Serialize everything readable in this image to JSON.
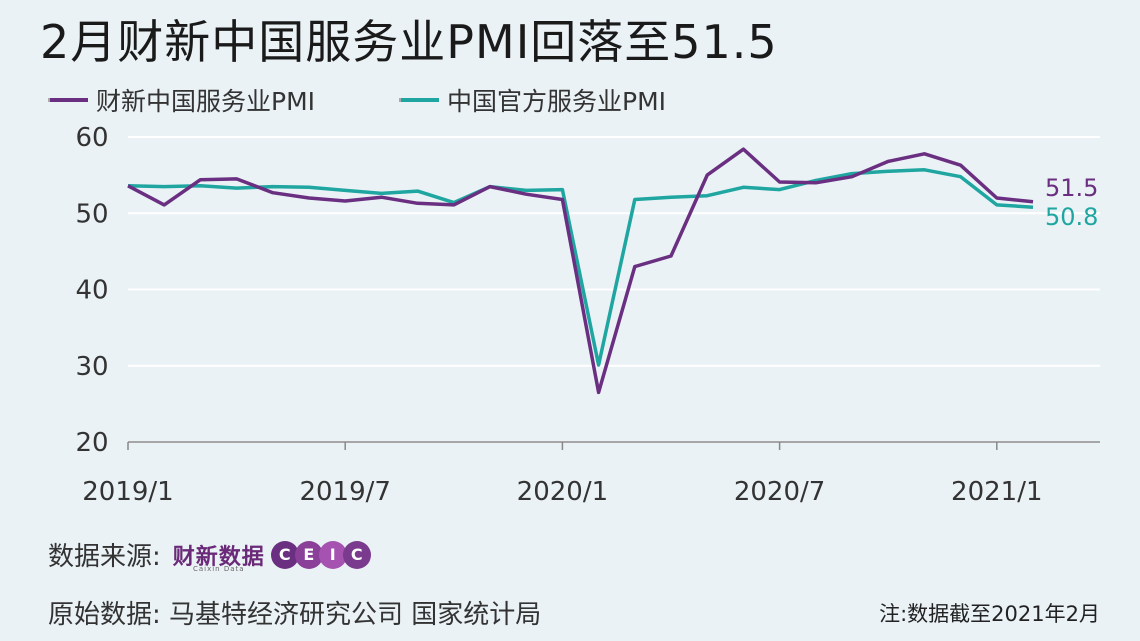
{
  "title": "2月财新中国服务业PMI回落至51.5",
  "legend": [
    {
      "label": "财新中国服务业PMI",
      "color": "#6a2f80"
    },
    {
      "label": "中国官方服务业PMI",
      "color": "#1fa6a0"
    }
  ],
  "footer": {
    "source_label": "数据来源:",
    "source_logo_text": "财新数据",
    "source_logo_sub": "Caixin Data",
    "ceic_letters": [
      "C",
      "E",
      "I",
      "C"
    ],
    "ceic_colors": [
      "#6a2f80",
      "#8a3f98",
      "#a552b0",
      "#7a3a8e"
    ],
    "original_label": "原始数据: 马基特经济研究公司 国家统计局",
    "note": "注:数据截至2021年2月"
  },
  "chart_data": {
    "type": "line",
    "x": [
      "2019/1",
      "2019/2",
      "2019/3",
      "2019/4",
      "2019/5",
      "2019/6",
      "2019/7",
      "2019/8",
      "2019/9",
      "2019/10",
      "2019/11",
      "2019/12",
      "2020/1",
      "2020/2",
      "2020/3",
      "2020/4",
      "2020/5",
      "2020/6",
      "2020/7",
      "2020/8",
      "2020/9",
      "2020/10",
      "2020/11",
      "2020/12",
      "2021/1",
      "2021/2"
    ],
    "x_tick_labels": [
      "2019/1",
      "2019/7",
      "2020/1",
      "2020/7",
      "2021/1"
    ],
    "y_ticks": [
      20,
      30,
      40,
      50,
      60
    ],
    "ylim": [
      20,
      60
    ],
    "grid": true,
    "series": [
      {
        "name": "财新中国服务业PMI",
        "color": "#6a2f80",
        "values": [
          53.6,
          51.1,
          54.4,
          54.5,
          52.7,
          52.0,
          51.6,
          52.1,
          51.3,
          51.1,
          53.5,
          52.5,
          51.8,
          26.5,
          43.0,
          44.4,
          55.0,
          58.4,
          54.1,
          54.0,
          54.8,
          56.8,
          57.8,
          56.3,
          52.0,
          51.5
        ],
        "end_label": "51.5"
      },
      {
        "name": "中国官方服务业PMI",
        "color": "#1fa6a0",
        "values": [
          53.6,
          53.5,
          53.6,
          53.3,
          53.5,
          53.4,
          53.0,
          52.6,
          52.9,
          51.4,
          53.5,
          53.0,
          53.1,
          30.1,
          51.8,
          52.1,
          52.3,
          53.4,
          53.1,
          54.3,
          55.2,
          55.5,
          55.7,
          54.8,
          51.1,
          50.8
        ],
        "end_label": "50.8"
      }
    ]
  }
}
